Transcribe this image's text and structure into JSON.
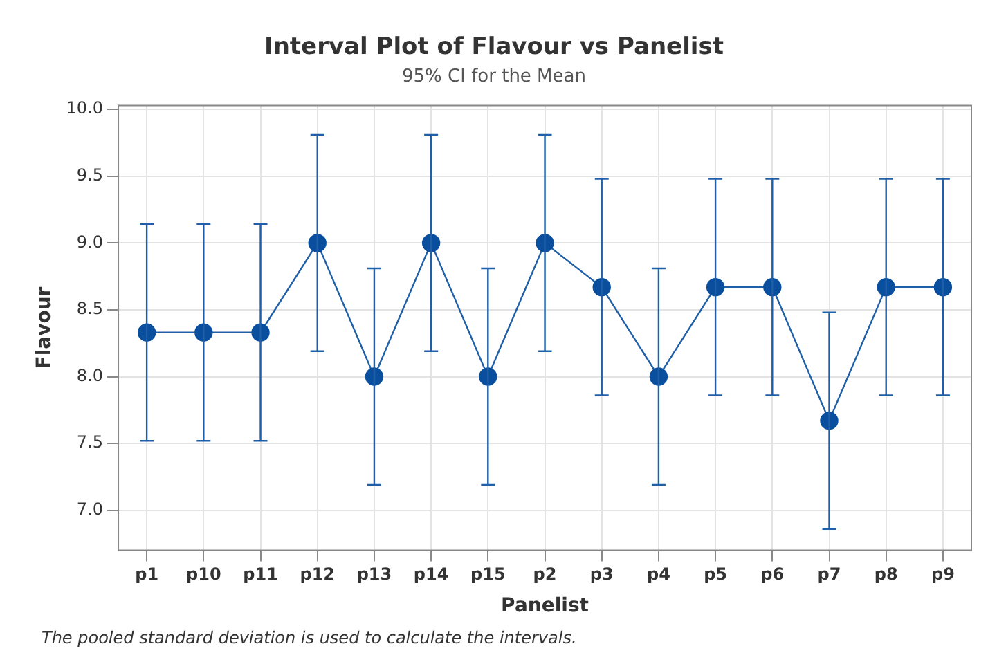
{
  "chart_data": {
    "type": "line",
    "title": "Interval Plot of Flavour vs Panelist",
    "subtitle": "95% CI for the Mean",
    "xlabel": "Panelist",
    "ylabel": "Flavour",
    "categories": [
      "p1",
      "p10",
      "p11",
      "p12",
      "p13",
      "p14",
      "p15",
      "p2",
      "p3",
      "p4",
      "p5",
      "p6",
      "p7",
      "p8",
      "p9"
    ],
    "series": [
      {
        "color": "#1f5fa8",
        "values": [
          8.33,
          8.33,
          8.33,
          9.0,
          8.0,
          9.0,
          8.0,
          9.0,
          8.67,
          8.0,
          8.67,
          8.67,
          7.67,
          8.67,
          8.67
        ],
        "errors": [
          0.81,
          0.81,
          0.81,
          0.81,
          0.81,
          0.81,
          0.81,
          0.81,
          0.81,
          0.81,
          0.81,
          0.81,
          0.81,
          0.81,
          0.81
        ]
      }
    ],
    "ylim": [
      6.7,
      10.03
    ],
    "yticks": [
      {
        "value": 7,
        "label": "7.0"
      },
      7.5,
      {
        "value": 8,
        "label": "8.0"
      },
      8.5,
      {
        "value": 9,
        "label": "9.0"
      },
      9.5,
      {
        "value": 10,
        "label": "10.0"
      }
    ],
    "grid": true,
    "legend": false,
    "marker": "circle",
    "line_style": "solid",
    "annotations": [
      "The pooled standard deviation is used to calculate the intervals."
    ]
  }
}
